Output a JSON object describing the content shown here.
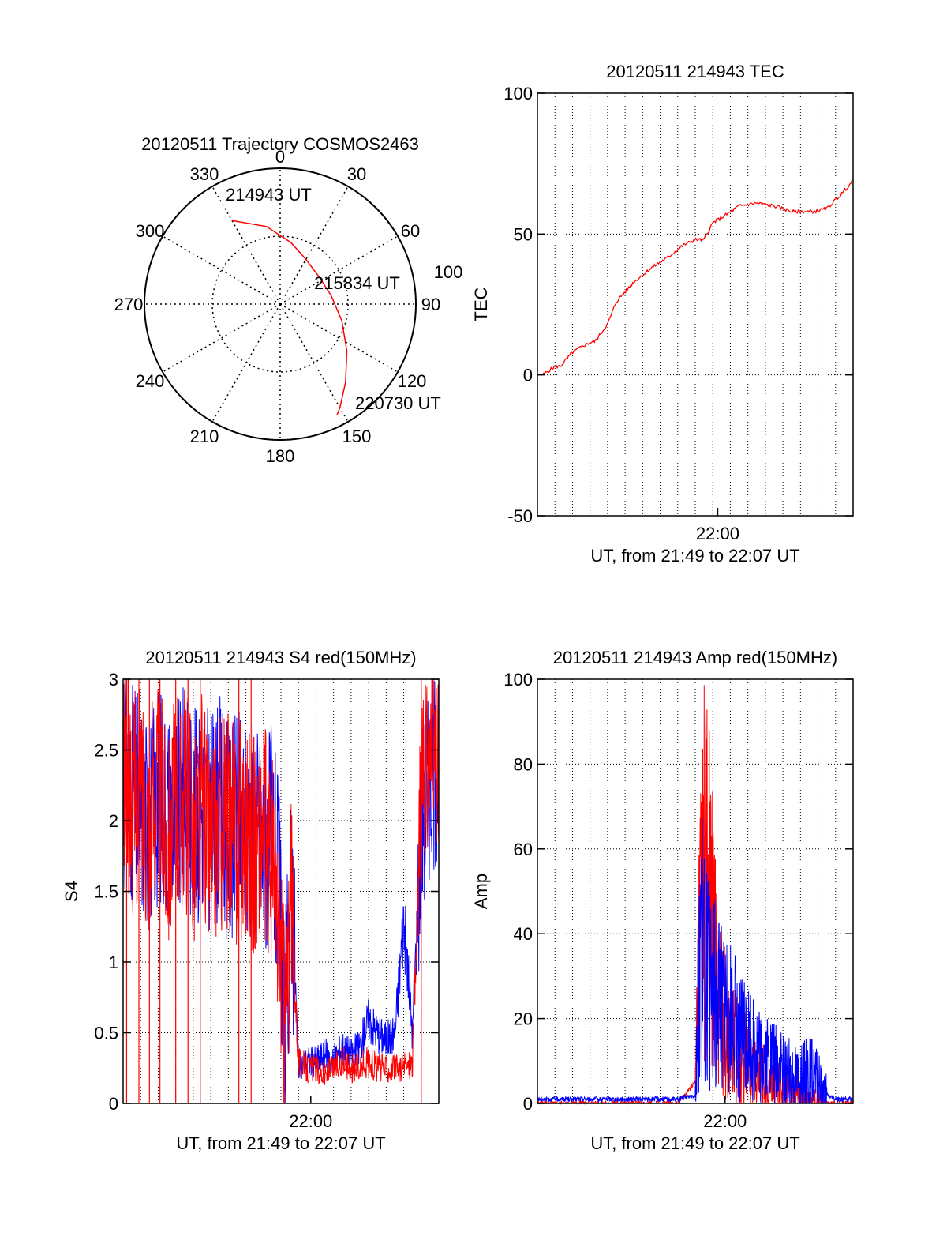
{
  "chart_data": [
    {
      "type": "polar",
      "title": "20120511 Trajectory COSMOS2463",
      "angle_labels": [
        "0",
        "30",
        "60",
        "90",
        "120",
        "150",
        "180",
        "210",
        "240",
        "270",
        "300",
        "330"
      ],
      "radius_label": "100",
      "rings": [
        0,
        50,
        100
      ],
      "grid": true,
      "series": [
        {
          "color": "#ff0000",
          "points": [
            [
              330,
              71
            ],
            [
              350,
              58
            ],
            [
              10,
              46
            ],
            [
              30,
              38
            ],
            [
              55,
              35
            ],
            [
              80,
              38
            ],
            [
              105,
              47
            ],
            [
              125,
              60
            ],
            [
              140,
              75
            ],
            [
              150,
              88
            ],
            [
              153,
              92
            ]
          ]
        }
      ],
      "annotations": [
        {
          "text": "214943 UT",
          "azimuth": 330,
          "elevation_offset": 71
        },
        {
          "text": "215834 UT",
          "azimuth": 60,
          "elevation_offset": 35
        },
        {
          "text": "220730 UT",
          "azimuth": 150,
          "elevation_offset": 92
        }
      ]
    },
    {
      "type": "line",
      "title": "20120511 214943 TEC",
      "ylabel": "TEC",
      "xlabel": "UT, from 21:49 to 22:07 UT",
      "xlim": [
        0,
        18
      ],
      "ylim": [
        -50,
        100
      ],
      "yticks": [
        -50,
        0,
        50,
        100
      ],
      "xticks": [
        {
          "value": 10.28,
          "label": "22:00"
        }
      ],
      "grid": true,
      "series": [
        {
          "color": "#ff0000",
          "x": [
            0.3,
            1.0,
            1.3,
            2.0,
            2.8,
            3.3,
            4.0,
            4.5,
            5.5,
            6.5,
            7.5,
            8.3,
            9.0,
            9.5,
            10.0,
            10.8,
            11.5,
            12.5,
            13.5,
            14.5,
            15.0,
            15.8,
            16.5,
            17.3,
            18.0
          ],
          "y": [
            0,
            3,
            3,
            8,
            11,
            12,
            18,
            26,
            33,
            38,
            42,
            46,
            48,
            48,
            54,
            57,
            60,
            61,
            60,
            58,
            58,
            58,
            59,
            64,
            69
          ]
        }
      ]
    },
    {
      "type": "line",
      "title": "20120511 214943 S4 red(150MHz)",
      "ylabel": "S4",
      "xlabel": "UT, from 21:49 to 22:07 UT",
      "xlim": [
        0,
        18
      ],
      "ylim": [
        0,
        3
      ],
      "yticks": [
        0,
        0.5,
        1,
        1.5,
        2,
        2.5,
        3
      ],
      "ytick_labels": [
        "0",
        "0.5",
        "1",
        "1.5",
        "2",
        "2.5",
        "3"
      ],
      "xticks": [
        {
          "value": 10.7,
          "label": "22:00"
        }
      ],
      "grid": true,
      "series": [
        {
          "color": "#0000ff",
          "x": [
            0,
            0.5,
            1,
            1.5,
            2,
            2.5,
            3,
            3.5,
            4,
            4.5,
            5,
            5.5,
            6,
            6.5,
            7,
            7.5,
            8,
            8.5,
            9,
            9.2,
            9.6,
            10,
            10.5,
            11,
            11.5,
            12,
            12.5,
            13,
            13.5,
            14,
            14.5,
            15,
            15.5,
            16,
            16.5,
            17,
            17.5,
            18
          ],
          "y": [
            2.3,
            2.2,
            2.1,
            2.0,
            2.2,
            2.1,
            2.0,
            2.2,
            2.0,
            2.1,
            2.0,
            2.1,
            1.9,
            2.0,
            1.9,
            2.0,
            1.8,
            1.9,
            1.3,
            0.4,
            1.6,
            0.25,
            0.3,
            0.3,
            0.35,
            0.3,
            0.4,
            0.35,
            0.4,
            0.6,
            0.5,
            0.45,
            0.5,
            1.3,
            0.5,
            2.0,
            2.3,
            2.4
          ]
        },
        {
          "color": "#ff0000",
          "x": [
            0,
            0.5,
            1,
            1.5,
            2,
            2.5,
            3,
            3.5,
            4,
            4.5,
            5,
            5.5,
            6,
            6.5,
            7,
            7.5,
            8,
            8.5,
            9,
            9.2,
            9.6,
            10,
            10.5,
            11,
            11.5,
            12,
            12.5,
            13,
            13.5,
            14,
            14.5,
            15,
            15.5,
            16,
            16.5,
            17,
            17.5,
            18
          ],
          "y": [
            2.4,
            2.1,
            2.2,
            2.0,
            2.3,
            1.9,
            2.1,
            2.2,
            1.9,
            2.2,
            1.8,
            2.0,
            2.0,
            1.9,
            2.0,
            1.8,
            1.9,
            1.7,
            1.1,
            0.45,
            1.4,
            0.3,
            0.25,
            0.25,
            0.2,
            0.25,
            0.3,
            0.25,
            0.25,
            0.3,
            0.25,
            0.25,
            0.25,
            0.25,
            0.3,
            2.2,
            2.5,
            2.4
          ]
        }
      ]
    },
    {
      "type": "line",
      "title": "20120511 214943 Amp red(150MHz)",
      "ylabel": "Amp",
      "xlabel": "UT, from 21:49 to 22:07 UT",
      "xlim": [
        0,
        18
      ],
      "ylim": [
        0,
        100
      ],
      "yticks": [
        0,
        20,
        40,
        60,
        80,
        100
      ],
      "xticks": [
        {
          "value": 10.7,
          "label": "22:00"
        }
      ],
      "grid": true,
      "series": [
        {
          "color": "#ff0000",
          "x": [
            0,
            2,
            4,
            6,
            8,
            9.0,
            9.3,
            9.6,
            9.9,
            10.2,
            10.5,
            11,
            11.5,
            12,
            12.5,
            13,
            13.5,
            14,
            14.5,
            15,
            15.5,
            16,
            16.5,
            17,
            18
          ],
          "y": [
            0,
            0,
            0,
            0,
            0,
            5,
            50,
            60,
            45,
            30,
            22,
            15,
            12,
            10,
            8,
            6,
            5,
            4,
            3,
            2,
            1,
            1,
            0,
            0,
            0
          ]
        },
        {
          "color": "#0000ff",
          "x": [
            0,
            2,
            4,
            6,
            8,
            9.0,
            9.3,
            9.6,
            9.9,
            10.2,
            10.5,
            11,
            11.5,
            12,
            12.5,
            13,
            13.5,
            14,
            14.5,
            15,
            15.5,
            16,
            16.5,
            17,
            18
          ],
          "y": [
            1,
            1,
            1,
            1,
            1,
            2,
            40,
            30,
            25,
            28,
            22,
            20,
            16,
            14,
            12,
            10,
            9,
            8,
            7,
            6,
            8,
            5,
            2,
            1,
            1
          ]
        }
      ]
    }
  ]
}
